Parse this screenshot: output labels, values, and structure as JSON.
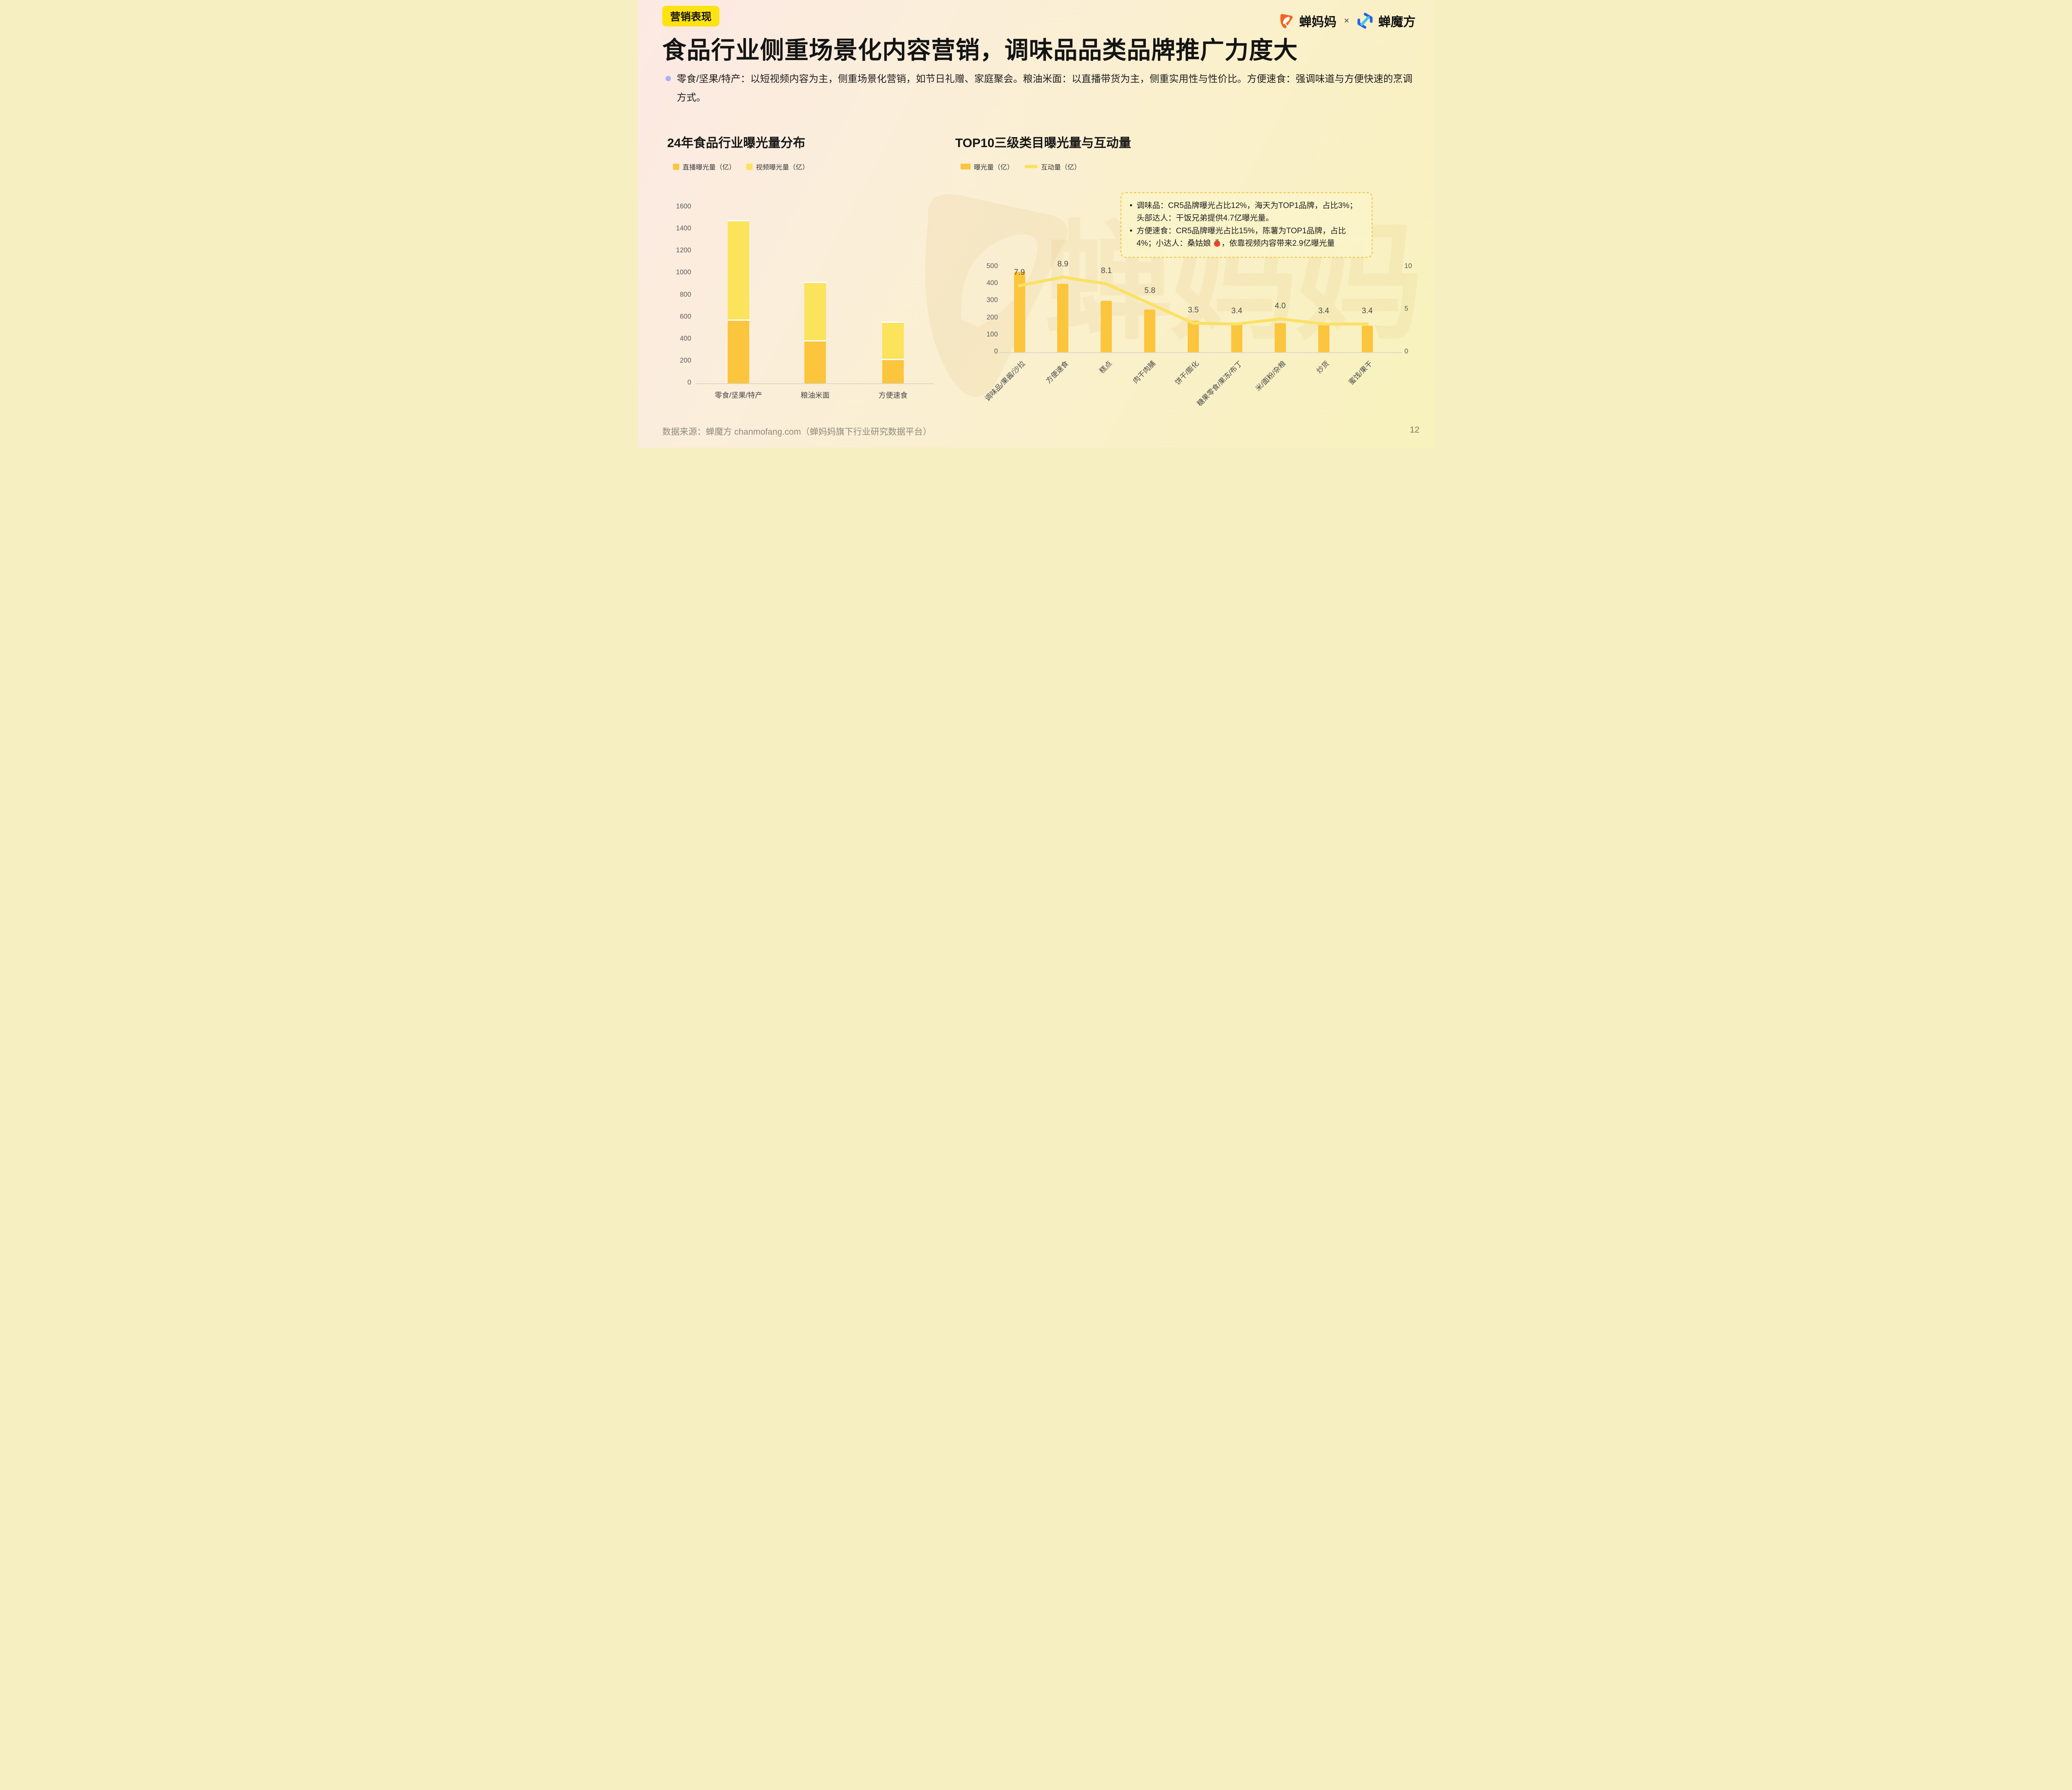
{
  "page": {
    "badge": "营销表现",
    "title": "食品行业侧重场景化内容营销，调味品品类品牌推广力度大",
    "bullet": "零食/坚果/特产：以短视频内容为主，侧重场景化营销，如节日礼赠、家庭聚会。粮油米面：以直播带货为主，侧重实用性与性价比。方便速食：强调味道与方便快速的烹调方式。",
    "watermark": "蝉妈妈"
  },
  "logos": {
    "brand1": "蝉妈妈",
    "multiply": "×",
    "brand2": "蝉魔方",
    "brand1_color": "#F3671E",
    "brand2_color": "#2B62DE"
  },
  "annotation": {
    "item1": "调味品：CR5品牌曝光占比12%，海天为TOP1品牌，占比3%；头部达人：干饭兄弟提供4.7亿曝光量。",
    "item2_pre": "方便速食：CR5品牌曝光占比15%，陈薯为TOP1品牌，占比4%；小达人：桑姑娘 ",
    "item2_emoji": "tomato",
    "item2_post": "，依靠视频内容带来2.9亿曝光量"
  },
  "footer": {
    "source": "数据来源：蝉魔方 chanmofang.com（蝉妈妈旗下行业研究数据平台）",
    "page": "12"
  },
  "chart_data": [
    {
      "id": "exposure-distribution",
      "type": "bar",
      "stacked": true,
      "title": "24年食品行业曝光量分布",
      "categories": [
        "零食/坚果/特产",
        "粮油米面",
        "方便速食"
      ],
      "series": [
        {
          "name": "直播曝光量（亿）",
          "color": "#FBC53D",
          "values": [
            570,
            380,
            210
          ]
        },
        {
          "name": "视频曝光量（亿）",
          "color": "#FBE35B",
          "values": [
            890,
            520,
            330
          ]
        }
      ],
      "ylim": [
        0,
        1600
      ],
      "ytick_step": 200,
      "grid": false,
      "legend_position": "top"
    },
    {
      "id": "top10-exposure-interaction",
      "type": "bar+line",
      "title": "TOP10三级类目曝光量与互动量",
      "categories": [
        "调味品/果酱/沙拉",
        "方便速食",
        "糕点",
        "肉干肉脯",
        "饼干/膨化",
        "糖果零食/果冻/布丁",
        "米/面粉/杂粮",
        "炒货",
        "蜜饯/果干"
      ],
      "bar_series": {
        "name": "曝光量（亿）",
        "color": "#FBC53D",
        "axis": "left",
        "values": [
          470,
          400,
          300,
          250,
          185,
          170,
          170,
          160,
          155
        ]
      },
      "line_series": {
        "name": "互动量（亿）",
        "color": "#FAE163",
        "axis": "right",
        "values": [
          7.9,
          8.9,
          8.1,
          5.8,
          3.5,
          3.4,
          4.0,
          3.4,
          3.4
        ],
        "labels": [
          "7.9",
          "8.9",
          "8.1",
          "5.8",
          "3.5",
          "3.4",
          "4.0",
          "3.4",
          "3.4"
        ]
      },
      "ylim_left": [
        0,
        500
      ],
      "ytick_step_left": 100,
      "ylim_right": [
        0,
        10
      ],
      "yticks_right": [
        10,
        5,
        0
      ],
      "grid": false,
      "legend_position": "top"
    }
  ]
}
